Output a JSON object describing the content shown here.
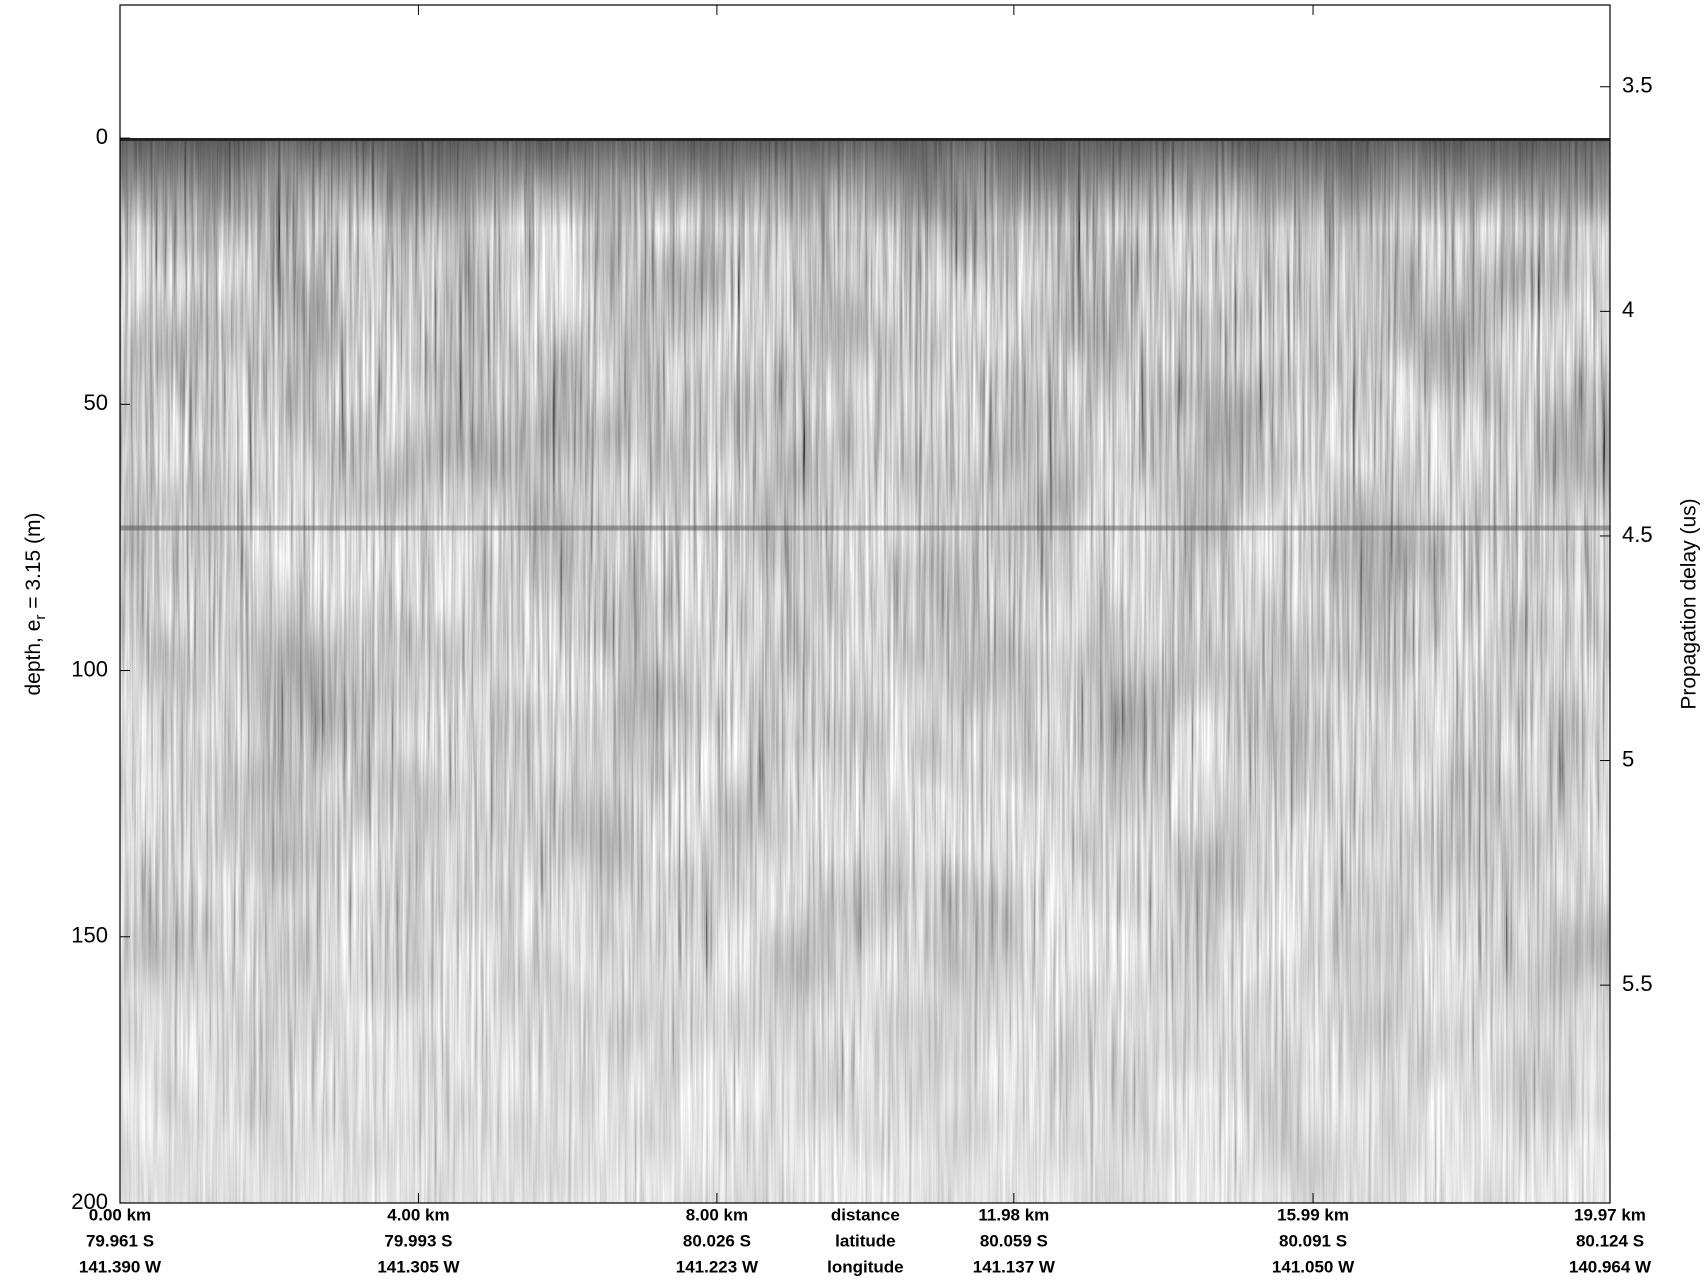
{
  "chart_data": {
    "type": "radargram",
    "ylabel": {
      "text": "depth, e",
      "subscript": "r",
      "suffix": " = 3.15 (m)"
    },
    "y2label": "Propagation delay (us)",
    "ylim": [
      200,
      -25
    ],
    "yticks": [
      0,
      50,
      100,
      150,
      200
    ],
    "y2lim": [
      5.985,
      3.318
    ],
    "y2ticks": [
      3.5,
      4,
      4.5,
      5,
      5.5
    ],
    "xlim": [
      0,
      19.97
    ],
    "xticks": [
      {
        "value": 0,
        "label": "0.00 km"
      },
      {
        "value": 4,
        "label": "4.00 km"
      },
      {
        "value": 8,
        "label": "8.00 km"
      },
      {
        "value": 11.98,
        "label": "11.98 km"
      },
      {
        "value": 15.99,
        "label": "15.99 km"
      },
      {
        "value": 19.97,
        "label": "19.97 km"
      }
    ],
    "xtick_latitudes": [
      "79.961 S",
      "79.993 S",
      "80.026 S",
      "80.059 S",
      "80.091 S",
      "80.124 S"
    ],
    "xtick_longitudes": [
      "141.390 W",
      "141.305 W",
      "141.223 W",
      "141.137 W",
      "141.050 W",
      "140.964 W"
    ],
    "xtick_row_names": [
      "distance",
      "latitude",
      "longitude"
    ]
  }
}
